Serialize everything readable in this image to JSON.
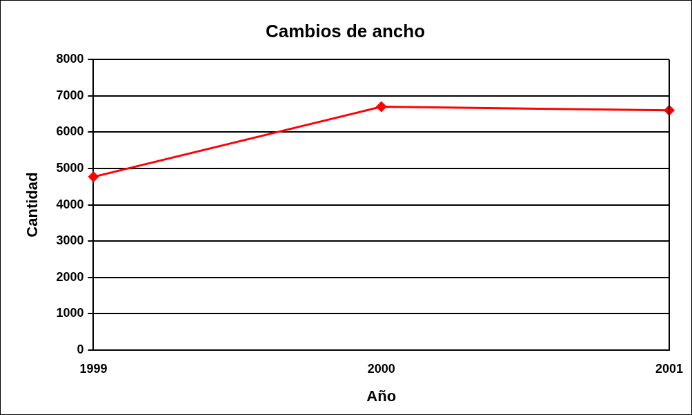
{
  "chart_data": {
    "type": "line",
    "title": "Cambios de ancho",
    "xlabel": "Año",
    "ylabel": "Cantidad",
    "categories": [
      "1999",
      "2000",
      "2001"
    ],
    "series": [
      {
        "color": "#ff0000",
        "values": [
          4770,
          6700,
          6600
        ]
      }
    ],
    "ylim": [
      0,
      8000
    ],
    "yticks": [
      0,
      1000,
      2000,
      3000,
      4000,
      5000,
      6000,
      7000,
      8000
    ],
    "grid": "y",
    "legend": false,
    "marker": "diamond",
    "line_style": "solid"
  }
}
